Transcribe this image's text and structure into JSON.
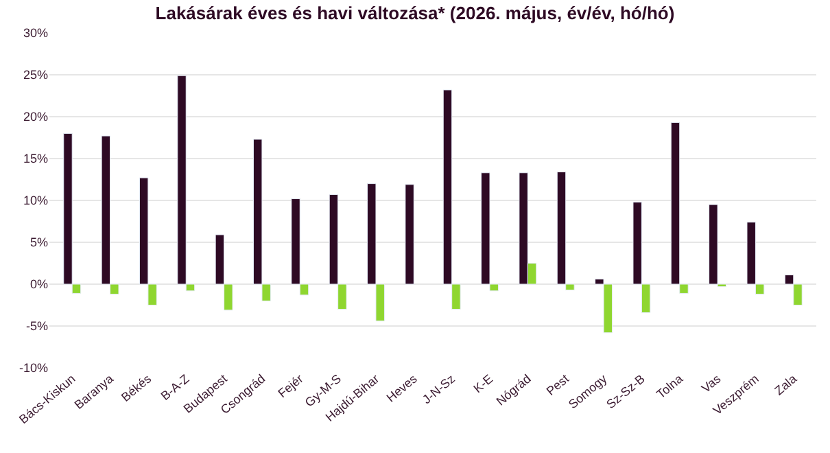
{
  "chart_data": {
    "type": "bar",
    "title": "Lakásárak éves és havi változása* (2026. május, év/év, hó/hó)",
    "categories": [
      "Bács-Kiskun",
      "Baranya",
      "Békés",
      "B-A-Z",
      "Budapest",
      "Csongrád",
      "Fejér",
      "Gy-M-S",
      "Hajdú-Bihar",
      "Heves",
      "J-N-Sz",
      "K-E",
      "Nógrád",
      "Pest",
      "Somogy",
      "Sz-Sz-B",
      "Tolna",
      "Vas",
      "Veszprém",
      "Zala"
    ],
    "series": [
      {
        "color": "#2e0a24",
        "values": [
          18.0,
          17.7,
          12.7,
          24.9,
          5.9,
          17.3,
          10.2,
          10.7,
          12.0,
          11.9,
          23.2,
          13.3,
          13.3,
          13.4,
          0.6,
          9.8,
          19.3,
          9.5,
          7.4,
          1.1
        ]
      },
      {
        "color": "#8fd630",
        "values": [
          -1.1,
          -1.2,
          -2.5,
          -0.8,
          -3.1,
          -2.0,
          -1.3,
          -3.0,
          -4.4,
          null,
          -3.0,
          -0.8,
          2.5,
          -0.7,
          -5.8,
          -3.4,
          -1.1,
          -0.3,
          -1.2,
          -2.5
        ]
      }
    ],
    "ylim": [
      -10,
      30
    ],
    "yticks": [
      {
        "value": -10,
        "label": "-10%"
      },
      {
        "value": -5,
        "label": "-5%"
      },
      {
        "value": 0,
        "label": "0%"
      },
      {
        "value": 5,
        "label": "5%"
      },
      {
        "value": 10,
        "label": "10%"
      },
      {
        "value": 15,
        "label": "15%"
      },
      {
        "value": 20,
        "label": "20%"
      },
      {
        "value": 25,
        "label": "25%"
      },
      {
        "value": 30,
        "label": "30%"
      }
    ],
    "grid": "y"
  }
}
